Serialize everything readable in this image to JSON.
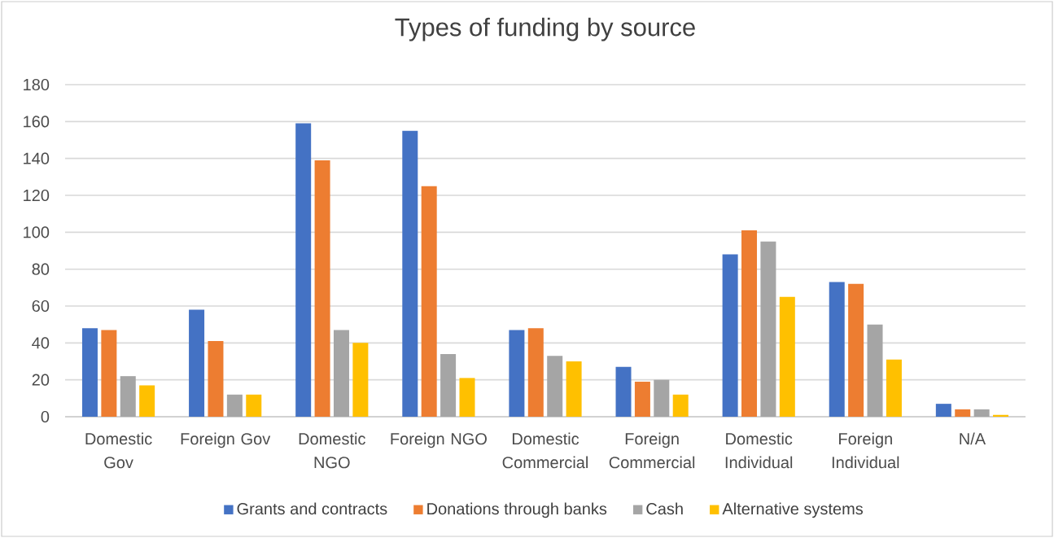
{
  "chart_data": {
    "type": "bar",
    "title": "Types of funding by source",
    "categories": [
      "Domestic Gov",
      "Foreign Gov",
      "Domestic NGO",
      "Foreign NGO",
      "Domestic Commercial",
      "Foreign Commercial",
      "Domestic Individual",
      "Foreign Individual",
      "N/A"
    ],
    "series": [
      {
        "name": "Grants and contracts",
        "color": "#4472c4",
        "values": [
          48,
          58,
          159,
          155,
          47,
          27,
          88,
          73,
          7
        ]
      },
      {
        "name": "Donations through banks",
        "color": "#ed7d31",
        "values": [
          47,
          41,
          139,
          125,
          48,
          19,
          101,
          72,
          4
        ]
      },
      {
        "name": "Cash",
        "color": "#a5a5a5",
        "values": [
          22,
          12,
          47,
          34,
          33,
          20,
          95,
          50,
          4
        ]
      },
      {
        "name": "Alternative systems",
        "color": "#ffc000",
        "values": [
          17,
          12,
          40,
          21,
          30,
          12,
          65,
          31,
          1
        ]
      }
    ],
    "ylim": [
      0,
      180
    ],
    "yticks": [
      0,
      20,
      40,
      60,
      80,
      100,
      120,
      140,
      160,
      180
    ],
    "grid": "y",
    "legend": "bottom"
  }
}
